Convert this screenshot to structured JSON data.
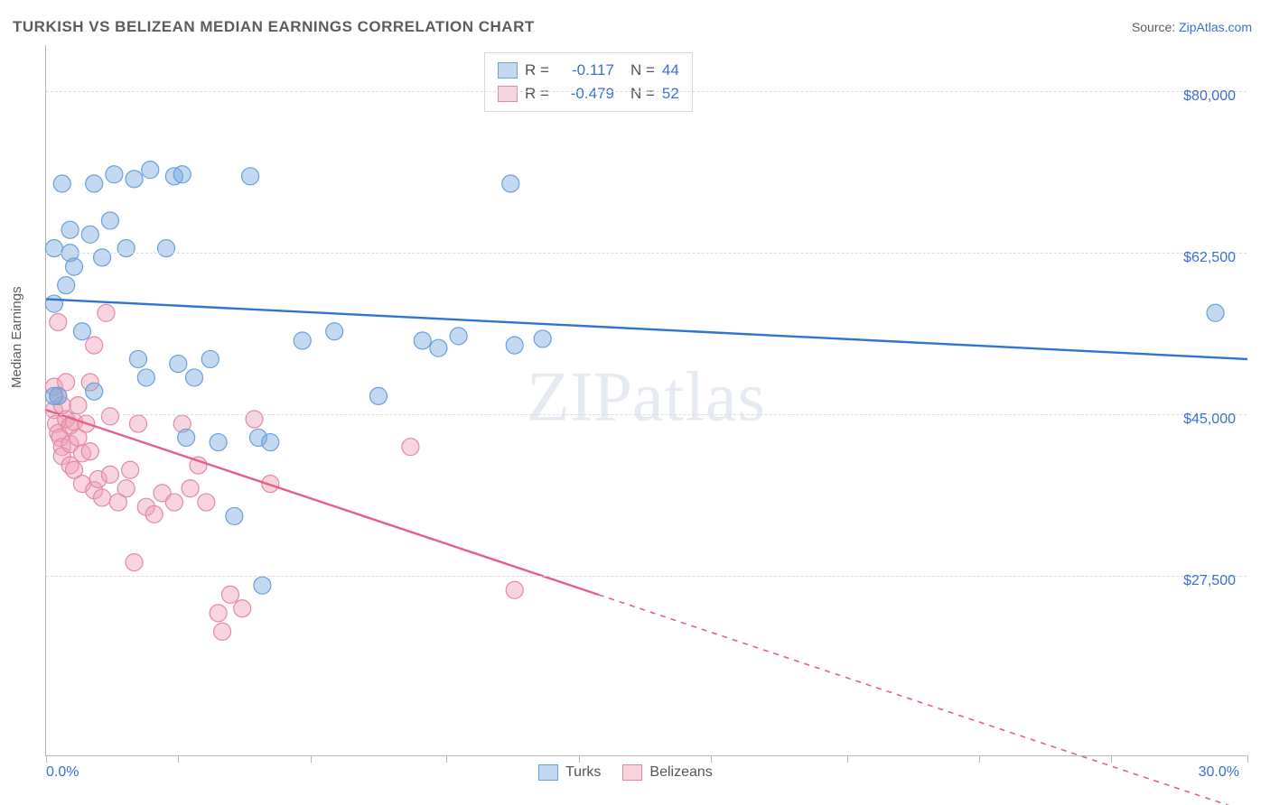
{
  "title": "TURKISH VS BELIZEAN MEDIAN EARNINGS CORRELATION CHART",
  "source_prefix": "Source: ",
  "source_site": "ZipAtlas.com",
  "y_axis_label": "Median Earnings",
  "watermark": "ZIPatlas",
  "chart": {
    "type": "scatter",
    "background_color": "#ffffff",
    "grid_color": "#dcdcdc",
    "axis_color": "#b5b5b5",
    "text_color": "#5c5c5c",
    "value_color": "#3b6fd6",
    "xlim": [
      0,
      30
    ],
    "ylim": [
      8000,
      85000
    ],
    "yticks": [
      27500,
      45000,
      62500,
      80000
    ],
    "ytick_labels": [
      "$27,500",
      "$45,000",
      "$62,500",
      "$80,000"
    ],
    "xticks": [
      0,
      3.3,
      6.6,
      10,
      13.3,
      16.6,
      20,
      23.3,
      26.6,
      30
    ],
    "xtick_labels_shown": {
      "0": "0.0%",
      "30": "30.0%"
    },
    "marker_radius": 9.5,
    "marker_stroke_width": 1.2,
    "line_width": 2.4,
    "title_fontsize": 17,
    "label_fontsize": 15,
    "tick_fontsize": 16
  },
  "legend_top": {
    "rows": [
      {
        "r_label": "R =",
        "r_value": "-0.117",
        "n_label": "N =",
        "n_value": "44",
        "swatch": "turks"
      },
      {
        "r_label": "R =",
        "r_value": "-0.479",
        "n_label": "N =",
        "n_value": "52",
        "swatch": "belizeans"
      }
    ]
  },
  "legend_bottom": {
    "items": [
      {
        "label": "Turks",
        "swatch": "turks"
      },
      {
        "label": "Belizeans",
        "swatch": "belizeans"
      }
    ]
  },
  "series": {
    "turks": {
      "color_fill": "rgba(120,170,225,0.45)",
      "color_stroke": "#6aa0da",
      "line_color": "#2f74d0",
      "trend": {
        "x1": 0,
        "y1": 57500,
        "x2": 30,
        "y2": 51000,
        "dash_from_x": 30
      },
      "points": [
        [
          0.2,
          63000
        ],
        [
          0.3,
          47000
        ],
        [
          0.4,
          70000
        ],
        [
          0.6,
          65000
        ],
        [
          0.6,
          62500
        ],
        [
          0.7,
          61000
        ],
        [
          0.5,
          59000
        ],
        [
          0.9,
          54000
        ],
        [
          1.1,
          64500
        ],
        [
          1.2,
          70000
        ],
        [
          1.4,
          62000
        ],
        [
          1.6,
          66000
        ],
        [
          1.2,
          47500
        ],
        [
          1.7,
          71000
        ],
        [
          2.0,
          63000
        ],
        [
          2.2,
          70500
        ],
        [
          2.3,
          51000
        ],
        [
          2.5,
          49000
        ],
        [
          2.6,
          71500
        ],
        [
          3.0,
          63000
        ],
        [
          3.2,
          70800
        ],
        [
          3.3,
          50500
        ],
        [
          3.5,
          42500
        ],
        [
          3.4,
          71000
        ],
        [
          3.7,
          49000
        ],
        [
          4.1,
          51000
        ],
        [
          4.3,
          42000
        ],
        [
          4.7,
          34000
        ],
        [
          5.1,
          70800
        ],
        [
          5.3,
          42500
        ],
        [
          5.4,
          26500
        ],
        [
          5.6,
          42000
        ],
        [
          6.4,
          53000
        ],
        [
          7.2,
          54000
        ],
        [
          8.3,
          47000
        ],
        [
          9.4,
          53000
        ],
        [
          9.8,
          52200
        ],
        [
          10.3,
          53500
        ],
        [
          11.6,
          70000
        ],
        [
          11.7,
          52500
        ],
        [
          12.4,
          53200
        ],
        [
          29.2,
          56000
        ],
        [
          0.2,
          57000
        ],
        [
          0.2,
          47000
        ]
      ]
    },
    "belizeans": {
      "color_fill": "rgba(240,160,185,0.45)",
      "color_stroke": "#e389a6",
      "line_color": "#e65f87",
      "trend": {
        "x1": 0,
        "y1": 45500,
        "x2": 30,
        "y2": 2000,
        "dash_from_x": 13.8
      },
      "points": [
        [
          0.2,
          48000
        ],
        [
          0.2,
          45500
        ],
        [
          0.25,
          44000
        ],
        [
          0.3,
          47000
        ],
        [
          0.3,
          43000
        ],
        [
          0.35,
          42500
        ],
        [
          0.4,
          46000
        ],
        [
          0.4,
          41500
        ],
        [
          0.4,
          40500
        ],
        [
          0.5,
          48500
        ],
        [
          0.5,
          44500
        ],
        [
          0.6,
          43800
        ],
        [
          0.6,
          41800
        ],
        [
          0.6,
          39500
        ],
        [
          0.7,
          44200
        ],
        [
          0.7,
          39000
        ],
        [
          0.8,
          46000
        ],
        [
          0.8,
          42500
        ],
        [
          0.9,
          37500
        ],
        [
          0.9,
          40800
        ],
        [
          1.0,
          44000
        ],
        [
          1.1,
          48500
        ],
        [
          1.1,
          41000
        ],
        [
          1.2,
          36800
        ],
        [
          1.3,
          38000
        ],
        [
          1.4,
          36000
        ],
        [
          1.5,
          56000
        ],
        [
          1.6,
          44800
        ],
        [
          1.6,
          38500
        ],
        [
          1.8,
          35500
        ],
        [
          2.0,
          37000
        ],
        [
          2.1,
          39000
        ],
        [
          2.2,
          29000
        ],
        [
          2.3,
          44000
        ],
        [
          2.5,
          35000
        ],
        [
          2.7,
          34200
        ],
        [
          2.9,
          36500
        ],
        [
          3.2,
          35500
        ],
        [
          3.4,
          44000
        ],
        [
          3.6,
          37000
        ],
        [
          3.8,
          39500
        ],
        [
          4.0,
          35500
        ],
        [
          4.3,
          23500
        ],
        [
          4.4,
          21500
        ],
        [
          4.6,
          25500
        ],
        [
          4.9,
          24000
        ],
        [
          5.2,
          44500
        ],
        [
          5.6,
          37500
        ],
        [
          9.1,
          41500
        ],
        [
          11.7,
          26000
        ],
        [
          0.3,
          55000
        ],
        [
          1.2,
          52500
        ]
      ]
    }
  }
}
